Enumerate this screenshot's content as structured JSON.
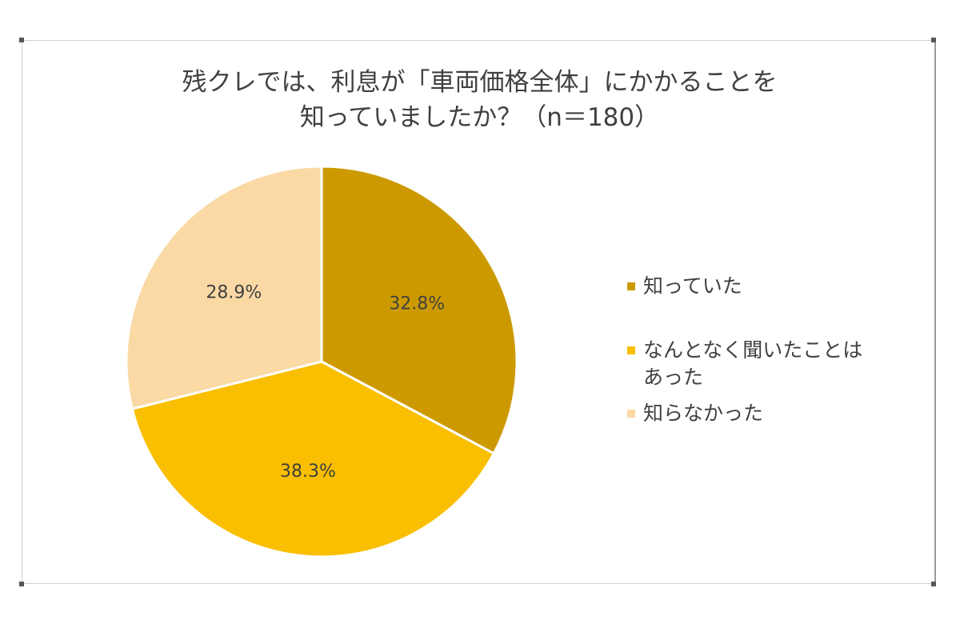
{
  "chart_data": {
    "type": "pie",
    "title_lines": [
      "残クレでは、利息が「車両価格全体」にかかることを",
      "知っていましたか？（n＝180）"
    ],
    "slices": [
      {
        "label": "知っていた",
        "value": 32.8,
        "display": "32.8%",
        "color": "#cc9a00"
      },
      {
        "label": "なんとなく聞いたことはあった",
        "label_lines": [
          "なんとなく聞いたことは",
          "あった"
        ],
        "value": 38.3,
        "display": "38.3%",
        "color": "#f9bf00"
      },
      {
        "label": "知らなかった",
        "value": 28.9,
        "display": "28.9%",
        "color": "#fbd9a5"
      }
    ],
    "start_angle": "12 o'clock",
    "direction": "clockwise",
    "legend_position": "right",
    "slice_border_color": "#ffffff"
  }
}
